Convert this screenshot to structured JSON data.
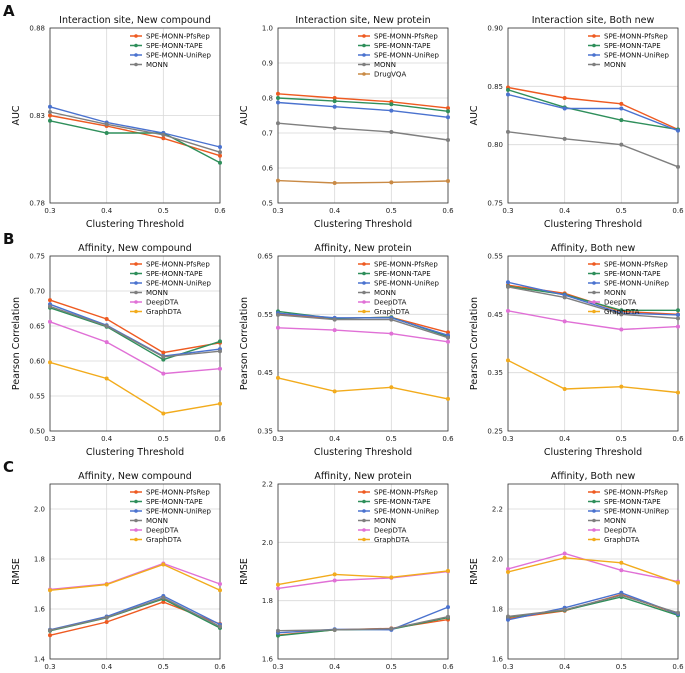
{
  "colors": {
    "SPE-MONN-PfsRep": "#ee5a21",
    "SPE-MONN-TAPE": "#2f8f5b",
    "SPE-MONN-UniRep": "#4a72cf",
    "MONN": "#7f7f7f",
    "DrugVQA": "#c98a45",
    "DeepDTA": "#e070d6",
    "GraphDTA": "#f2ab1c"
  },
  "chart_data": [
    {
      "id": "A1",
      "row_label": "A",
      "type": "line",
      "title": "Interaction site, New compound",
      "xlabel": "Clustering Threshold",
      "ylabel": "AUC",
      "x": [
        0.3,
        0.4,
        0.5,
        0.6
      ],
      "xticks": [
        "0.3",
        "0.4",
        "0.5",
        "0.6"
      ],
      "ylim": [
        0.78,
        0.88
      ],
      "yticks": [
        "0.78",
        "0.83",
        "0.88"
      ],
      "series": [
        {
          "name": "SPE-MONN-PfsRep",
          "values": [
            0.83,
            0.824,
            0.817,
            0.807
          ]
        },
        {
          "name": "SPE-MONN-TAPE",
          "values": [
            0.827,
            0.82,
            0.82,
            0.803
          ]
        },
        {
          "name": "SPE-MONN-UniRep",
          "values": [
            0.835,
            0.826,
            0.82,
            0.812
          ]
        },
        {
          "name": "MONN",
          "values": [
            0.832,
            0.825,
            0.819,
            0.809
          ]
        }
      ]
    },
    {
      "id": "A2",
      "row_label": "",
      "type": "line",
      "title": "Interaction site, New protein",
      "xlabel": "Clustering Threshold",
      "ylabel": "AUC",
      "x": [
        0.3,
        0.4,
        0.5,
        0.6
      ],
      "xticks": [
        "0.3",
        "0.4",
        "0.5",
        "0.6"
      ],
      "ylim": [
        0.5,
        1.0
      ],
      "yticks": [
        "0.5",
        "0.6",
        "0.7",
        "0.8",
        "0.9",
        "1.0"
      ],
      "series": [
        {
          "name": "SPE-MONN-PfsRep",
          "values": [
            0.812,
            0.8,
            0.789,
            0.771
          ]
        },
        {
          "name": "SPE-MONN-TAPE",
          "values": [
            0.8,
            0.791,
            0.782,
            0.762
          ]
        },
        {
          "name": "SPE-MONN-UniRep",
          "values": [
            0.787,
            0.775,
            0.764,
            0.745
          ]
        },
        {
          "name": "MONN",
          "values": [
            0.728,
            0.714,
            0.703,
            0.68
          ]
        },
        {
          "name": "DrugVQA",
          "values": [
            0.564,
            0.557,
            0.559,
            0.563
          ]
        }
      ]
    },
    {
      "id": "A3",
      "row_label": "",
      "type": "line",
      "title": "Interaction site, Both new",
      "xlabel": "Clustering Threshold",
      "ylabel": "AUC",
      "x": [
        0.3,
        0.4,
        0.5,
        0.6
      ],
      "xticks": [
        "0.3",
        "0.4",
        "0.5",
        "0.6"
      ],
      "ylim": [
        0.75,
        0.9
      ],
      "yticks": [
        "0.75",
        "0.80",
        "0.85",
        "0.90"
      ],
      "series": [
        {
          "name": "SPE-MONN-PfsRep",
          "values": [
            0.849,
            0.84,
            0.835,
            0.813
          ]
        },
        {
          "name": "SPE-MONN-TAPE",
          "values": [
            0.847,
            0.832,
            0.821,
            0.813
          ]
        },
        {
          "name": "SPE-MONN-UniRep",
          "values": [
            0.843,
            0.831,
            0.831,
            0.812
          ]
        },
        {
          "name": "MONN",
          "values": [
            0.811,
            0.805,
            0.8,
            0.781
          ]
        }
      ]
    },
    {
      "id": "B1",
      "row_label": "B",
      "type": "line",
      "title": "Affinity, New compound",
      "xlabel": "Clustering Threshold",
      "ylabel": "Pearson Correlation",
      "x": [
        0.3,
        0.4,
        0.5,
        0.6
      ],
      "xticks": [
        "0.3",
        "0.4",
        "0.5",
        "0.6"
      ],
      "ylim": [
        0.5,
        0.75
      ],
      "yticks": [
        "0.50",
        "0.55",
        "0.60",
        "0.65",
        "0.70",
        "0.75"
      ],
      "series": [
        {
          "name": "SPE-MONN-PfsRep",
          "values": [
            0.687,
            0.66,
            0.612,
            0.626
          ]
        },
        {
          "name": "SPE-MONN-TAPE",
          "values": [
            0.676,
            0.649,
            0.602,
            0.628
          ]
        },
        {
          "name": "SPE-MONN-UniRep",
          "values": [
            0.681,
            0.651,
            0.607,
            0.617
          ]
        },
        {
          "name": "MONN",
          "values": [
            0.678,
            0.65,
            0.606,
            0.614
          ]
        },
        {
          "name": "DeepDTA",
          "values": [
            0.656,
            0.627,
            0.582,
            0.589
          ]
        },
        {
          "name": "GraphDTA",
          "values": [
            0.598,
            0.575,
            0.525,
            0.539
          ]
        }
      ]
    },
    {
      "id": "B2",
      "row_label": "",
      "type": "line",
      "title": "Affinity, New protein",
      "xlabel": "Clustering Threshold",
      "ylabel": "Pearson Correlation",
      "x": [
        0.3,
        0.4,
        0.5,
        0.6
      ],
      "xticks": [
        "0.3",
        "0.4",
        "0.5",
        "0.6"
      ],
      "ylim": [
        0.35,
        0.65
      ],
      "yticks": [
        "0.35",
        "0.45",
        "0.55",
        "0.65"
      ],
      "series": [
        {
          "name": "SPE-MONN-PfsRep",
          "values": [
            0.551,
            0.543,
            0.545,
            0.519
          ]
        },
        {
          "name": "SPE-MONN-TAPE",
          "values": [
            0.555,
            0.543,
            0.545,
            0.512
          ]
        },
        {
          "name": "SPE-MONN-UniRep",
          "values": [
            0.552,
            0.544,
            0.544,
            0.514
          ]
        },
        {
          "name": "MONN",
          "values": [
            0.549,
            0.541,
            0.541,
            0.51
          ]
        },
        {
          "name": "DeepDTA",
          "values": [
            0.527,
            0.523,
            0.517,
            0.503
          ]
        },
        {
          "name": "GraphDTA",
          "values": [
            0.441,
            0.418,
            0.425,
            0.405
          ]
        }
      ]
    },
    {
      "id": "B3",
      "row_label": "",
      "type": "line",
      "title": "Affinity, Both new",
      "xlabel": "Clustering Threshold",
      "ylabel": "Pearson Correlation",
      "x": [
        0.3,
        0.4,
        0.5,
        0.6
      ],
      "xticks": [
        "0.3",
        "0.4",
        "0.5",
        "0.6"
      ],
      "ylim": [
        0.25,
        0.55
      ],
      "yticks": [
        "0.25",
        "0.35",
        "0.45",
        "0.55"
      ],
      "series": [
        {
          "name": "SPE-MONN-PfsRep",
          "values": [
            0.5,
            0.486,
            0.455,
            0.45
          ]
        },
        {
          "name": "SPE-MONN-TAPE",
          "values": [
            0.498,
            0.484,
            0.457,
            0.457
          ]
        },
        {
          "name": "SPE-MONN-UniRep",
          "values": [
            0.505,
            0.483,
            0.452,
            0.449
          ]
        },
        {
          "name": "MONN",
          "values": [
            0.497,
            0.479,
            0.45,
            0.443
          ]
        },
        {
          "name": "DeepDTA",
          "values": [
            0.456,
            0.438,
            0.424,
            0.429
          ]
        },
        {
          "name": "GraphDTA",
          "values": [
            0.371,
            0.322,
            0.326,
            0.316
          ]
        }
      ]
    },
    {
      "id": "C1",
      "row_label": "C",
      "type": "line",
      "title": "Affinity, New compound",
      "xlabel": "Clustering Threshold",
      "ylabel": "RMSE",
      "x": [
        0.3,
        0.4,
        0.5,
        0.6
      ],
      "xticks": [
        "0.3",
        "0.4",
        "0.5",
        "0.6"
      ],
      "ylim": [
        1.4,
        2.1
      ],
      "yticks": [
        "1.4",
        "1.6",
        "1.8",
        "2.0"
      ],
      "series": [
        {
          "name": "SPE-MONN-PfsRep",
          "values": [
            1.495,
            1.548,
            1.628,
            1.54
          ]
        },
        {
          "name": "SPE-MONN-TAPE",
          "values": [
            1.513,
            1.565,
            1.64,
            1.524
          ]
        },
        {
          "name": "SPE-MONN-UniRep",
          "values": [
            1.517,
            1.57,
            1.652,
            1.538
          ]
        },
        {
          "name": "MONN",
          "values": [
            1.515,
            1.566,
            1.645,
            1.53
          ]
        },
        {
          "name": "DeepDTA",
          "values": [
            1.678,
            1.7,
            1.782,
            1.7
          ]
        },
        {
          "name": "GraphDTA",
          "values": [
            1.675,
            1.698,
            1.778,
            1.675
          ]
        }
      ]
    },
    {
      "id": "C2",
      "row_label": "",
      "type": "line",
      "title": "Affinity, New protein",
      "xlabel": "Clustering Threshold",
      "ylabel": "RMSE",
      "x": [
        0.3,
        0.4,
        0.5,
        0.6
      ],
      "xticks": [
        "0.3",
        "0.4",
        "0.5",
        "0.6"
      ],
      "ylim": [
        1.6,
        2.2
      ],
      "yticks": [
        "1.6",
        "1.8",
        "2.0",
        "2.2"
      ],
      "series": [
        {
          "name": "SPE-MONN-PfsRep",
          "values": [
            1.682,
            1.7,
            1.705,
            1.735
          ]
        },
        {
          "name": "SPE-MONN-TAPE",
          "values": [
            1.68,
            1.7,
            1.702,
            1.742
          ]
        },
        {
          "name": "SPE-MONN-UniRep",
          "values": [
            1.69,
            1.702,
            1.7,
            1.778
          ]
        },
        {
          "name": "MONN",
          "values": [
            1.697,
            1.7,
            1.704,
            1.745
          ]
        },
        {
          "name": "DeepDTA",
          "values": [
            1.842,
            1.869,
            1.878,
            1.9
          ]
        },
        {
          "name": "GraphDTA",
          "values": [
            1.855,
            1.89,
            1.88,
            1.902
          ]
        }
      ]
    },
    {
      "id": "C3",
      "row_label": "",
      "type": "line",
      "title": "Affinity, Both new",
      "xlabel": "Clustering Threshold",
      "ylabel": "RMSE",
      "x": [
        0.3,
        0.4,
        0.5,
        0.6
      ],
      "xticks": [
        "0.3",
        "0.4",
        "0.5",
        "0.6"
      ],
      "ylim": [
        1.6,
        2.3
      ],
      "yticks": [
        "1.6",
        "1.8",
        "2.0",
        "2.2"
      ],
      "series": [
        {
          "name": "SPE-MONN-PfsRep",
          "values": [
            1.762,
            1.793,
            1.858,
            1.78
          ]
        },
        {
          "name": "SPE-MONN-TAPE",
          "values": [
            1.768,
            1.795,
            1.848,
            1.775
          ]
        },
        {
          "name": "SPE-MONN-UniRep",
          "values": [
            1.757,
            1.805,
            1.865,
            1.78
          ]
        },
        {
          "name": "MONN",
          "values": [
            1.77,
            1.797,
            1.855,
            1.785
          ]
        },
        {
          "name": "DeepDTA",
          "values": [
            1.96,
            2.022,
            1.955,
            1.91
          ]
        },
        {
          "name": "GraphDTA",
          "values": [
            1.948,
            2.005,
            1.985,
            1.905
          ]
        }
      ]
    }
  ]
}
